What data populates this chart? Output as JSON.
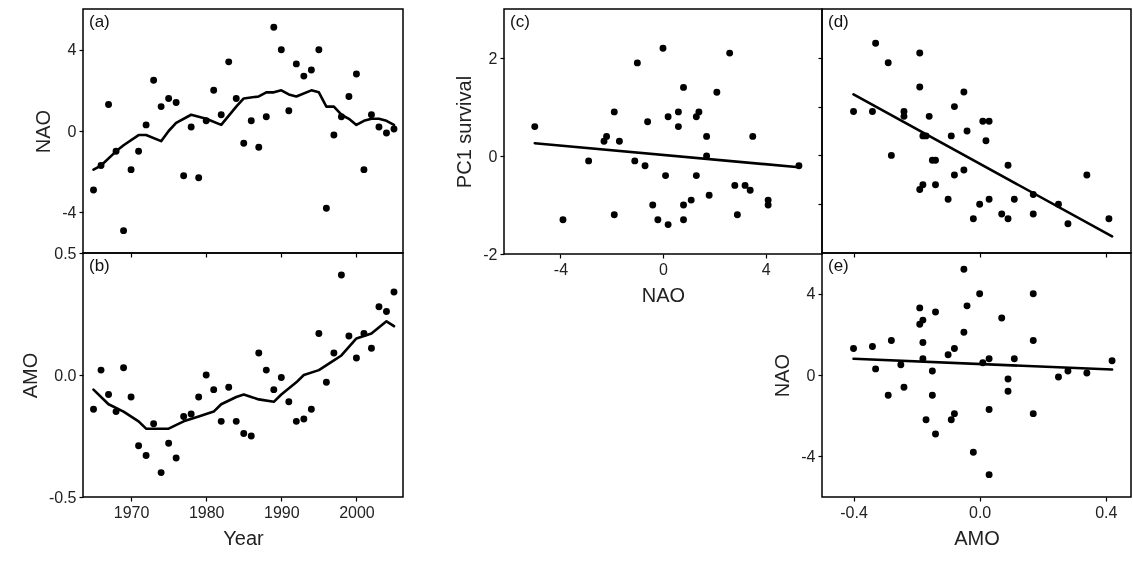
{
  "chart_data": [
    {
      "type": "scatter",
      "ylabel": "NAO",
      "annotations": [
        "(a)"
      ],
      "tick_labels": "y",
      "xlim": [
        1963.6,
        2006.2
      ],
      "xticks": [
        1970,
        1980,
        1990,
        2000
      ],
      "ylim": [
        -6,
        6
      ],
      "yticks": [
        -4,
        0,
        4
      ],
      "series": [
        {
          "type": "scatter",
          "marker": "circle",
          "color": "#000000",
          "x": [
            1965,
            1966,
            1967,
            1968,
            1969,
            1970,
            1971,
            1972,
            1973,
            1974,
            1975,
            1976,
            1977,
            1978,
            1979,
            1980,
            1981,
            1982,
            1983,
            1984,
            1985,
            1986,
            1987,
            1988,
            1989,
            1990,
            1991,
            1992,
            1993,
            1994,
            1995,
            1996,
            1997,
            1998,
            1999,
            2000,
            2001,
            2002,
            2003,
            2004,
            2005
          ],
          "values": [
            -2.9,
            -1.7,
            1.3,
            -1.0,
            -4.9,
            -1.9,
            -1.0,
            0.3,
            2.5,
            1.2,
            1.6,
            1.4,
            -2.2,
            0.2,
            -2.3,
            0.5,
            2.0,
            0.8,
            3.4,
            1.6,
            -0.6,
            0.5,
            -0.8,
            0.7,
            5.1,
            4.0,
            1.0,
            3.3,
            2.7,
            3.0,
            4.0,
            -3.8,
            -0.2,
            0.7,
            1.7,
            2.8,
            -1.9,
            0.8,
            0.2,
            -0.1,
            0.1
          ]
        },
        {
          "type": "line",
          "color": "#000000",
          "x": [
            1965,
            1966,
            1968,
            1969,
            1971,
            1972,
            1974,
            1975,
            1976,
            1978,
            1979,
            1980,
            1982,
            1984,
            1985,
            1987,
            1988,
            1989,
            1990,
            1991,
            1992,
            1994,
            1995,
            1996,
            1997,
            1998,
            1999,
            2000,
            2001,
            2002,
            2003,
            2004,
            2005
          ],
          "values": [
            -1.9,
            -1.7,
            -1.0,
            -0.7,
            -0.2,
            -0.2,
            -0.5,
            0.0,
            0.4,
            0.8,
            0.7,
            0.6,
            0.3,
            1.2,
            1.6,
            1.7,
            1.9,
            1.9,
            2.0,
            1.8,
            1.7,
            2.0,
            1.9,
            1.2,
            1.2,
            0.8,
            0.6,
            0.3,
            0.5,
            0.6,
            0.6,
            0.5,
            0.3
          ]
        }
      ]
    },
    {
      "type": "scatter",
      "xlabel": "Year",
      "ylabel": "AMO",
      "annotations": [
        "(b)"
      ],
      "xlim": [
        1963.6,
        2006.2
      ],
      "xticks": [
        1970,
        1980,
        1990,
        2000
      ],
      "ylim": [
        -0.5,
        0.5
      ],
      "yticks": [
        -0.5,
        {
          "value": 0,
          "label": "0.0"
        },
        0.5
      ],
      "series": [
        {
          "type": "scatter",
          "marker": "circle",
          "color": "#000000",
          "x": [
            1965,
            1966,
            1967,
            1968,
            1969,
            1970,
            1971,
            1972,
            1973,
            1974,
            1975,
            1976,
            1977,
            1978,
            1979,
            1980,
            1981,
            1982,
            1983,
            1984,
            1985,
            1986,
            1987,
            1988,
            1989,
            1990,
            1991,
            1992,
            1993,
            1994,
            1995,
            1996,
            1997,
            1998,
            1999,
            2000,
            2001,
            2002,
            2003,
            2004,
            2005
          ],
          "values": [
            -0.14,
            0.02,
            -0.08,
            -0.15,
            0.03,
            -0.09,
            -0.29,
            -0.33,
            -0.2,
            -0.4,
            -0.28,
            -0.34,
            -0.17,
            -0.16,
            -0.09,
            0.0,
            -0.06,
            -0.19,
            -0.05,
            -0.19,
            -0.24,
            -0.25,
            0.09,
            0.02,
            -0.06,
            -0.01,
            -0.11,
            -0.19,
            -0.18,
            -0.14,
            0.17,
            -0.03,
            0.09,
            0.41,
            0.16,
            0.07,
            0.17,
            0.11,
            0.28,
            0.26,
            0.34
          ]
        },
        {
          "type": "line",
          "color": "#000000",
          "x": [
            1965,
            1967,
            1969,
            1971,
            1972,
            1973,
            1975,
            1977,
            1979,
            1981,
            1982,
            1984,
            1985,
            1986,
            1987,
            1989,
            1990,
            1992,
            1993,
            1995,
            1997,
            1998,
            2000,
            2002,
            2004,
            2005
          ],
          "values": [
            -0.06,
            -0.12,
            -0.15,
            -0.19,
            -0.22,
            -0.22,
            -0.22,
            -0.19,
            -0.17,
            -0.15,
            -0.12,
            -0.09,
            -0.08,
            -0.09,
            -0.1,
            -0.11,
            -0.08,
            -0.03,
            0.0,
            0.02,
            0.06,
            0.08,
            0.15,
            0.17,
            0.22,
            0.2
          ]
        }
      ]
    },
    {
      "type": "scatter",
      "xlabel": "NAO",
      "ylabel": "PC1 survival",
      "annotations": [
        "(c)"
      ],
      "xlim": [
        -6.2,
        6.2
      ],
      "xticks": [
        -4,
        0,
        4
      ],
      "ylim": [
        -2,
        3
      ],
      "yticks": [
        -2,
        0,
        2
      ],
      "series": [
        {
          "type": "scatter",
          "marker": "circle",
          "color": "#000000",
          "x": [
            -5.0,
            -3.9,
            -2.9,
            -2.3,
            -2.2,
            -1.9,
            -1.9,
            -1.7,
            -1.1,
            -1.0,
            -0.7,
            -0.6,
            -0.4,
            -0.2,
            0.0,
            0.1,
            0.2,
            0.2,
            0.6,
            0.6,
            0.8,
            0.8,
            0.8,
            1.1,
            1.3,
            1.3,
            1.4,
            1.7,
            1.7,
            1.8,
            2.1,
            2.6,
            2.8,
            2.9,
            3.2,
            3.4,
            3.5,
            4.1,
            4.1,
            5.3
          ],
          "values": [
            0.6,
            -1.3,
            -0.1,
            0.3,
            0.4,
            0.9,
            -1.2,
            0.3,
            -0.1,
            1.9,
            -0.2,
            0.7,
            -1.0,
            -1.3,
            2.2,
            -0.4,
            0.8,
            -1.4,
            0.9,
            0.6,
            -1.0,
            -1.3,
            1.4,
            -0.9,
            0.8,
            -0.4,
            0.9,
            0.4,
            0.0,
            -0.8,
            1.3,
            2.1,
            -0.6,
            -1.2,
            -0.6,
            -0.7,
            0.4,
            -0.9,
            -1.0,
            -0.2
          ]
        },
        {
          "type": "line",
          "color": "#000000",
          "x": [
            -5.0,
            5.3
          ],
          "values": [
            0.26,
            -0.23
          ]
        }
      ]
    },
    {
      "type": "scatter",
      "annotations": [
        "(d)"
      ],
      "tick_labels": false,
      "xlim": [
        -0.5,
        0.48
      ],
      "xticks": [
        -0.4,
        0,
        0.4
      ],
      "ylim": [
        -2,
        3
      ],
      "yticks": [
        -1,
        0,
        1,
        2
      ],
      "series": [
        {
          "type": "scatter",
          "marker": "circle",
          "color": "#000000",
          "x": [
            -0.4,
            -0.34,
            -0.33,
            -0.29,
            -0.28,
            -0.24,
            -0.24,
            -0.19,
            -0.19,
            -0.19,
            -0.18,
            -0.18,
            -0.17,
            -0.16,
            -0.15,
            -0.14,
            -0.14,
            -0.1,
            -0.09,
            -0.08,
            -0.08,
            -0.05,
            -0.05,
            -0.04,
            -0.02,
            0.0,
            0.01,
            0.03,
            0.03,
            0.02,
            0.07,
            0.09,
            0.09,
            0.11,
            0.17,
            0.17,
            0.25,
            0.28,
            0.34,
            0.41
          ],
          "values": [
            0.9,
            0.9,
            2.3,
            1.9,
            0.0,
            0.9,
            0.8,
            2.1,
            1.4,
            -0.7,
            -0.6,
            0.4,
            0.4,
            0.8,
            -0.1,
            -0.1,
            -0.6,
            -0.9,
            0.4,
            1.0,
            -0.4,
            1.3,
            -0.3,
            0.5,
            -1.3,
            -1.0,
            0.7,
            -0.9,
            0.7,
            0.3,
            -1.2,
            -1.3,
            -0.2,
            -0.9,
            -0.8,
            -1.2,
            -1.0,
            -1.4,
            -0.4,
            -1.3
          ]
        },
        {
          "type": "line",
          "color": "#000000",
          "x": [
            -0.4,
            0.42
          ],
          "values": [
            1.25,
            -1.66
          ]
        }
      ]
    },
    {
      "type": "scatter",
      "xlabel": "AMO",
      "ylabel": "NAO",
      "annotations": [
        "(e)"
      ],
      "xlim": [
        -0.5,
        0.48
      ],
      "xticks": [
        -0.4,
        {
          "value": 0,
          "label": "0.0"
        },
        0.4
      ],
      "ylim": [
        -6,
        6
      ],
      "yticks": [
        -4,
        0,
        4
      ],
      "series": [
        {
          "type": "scatter",
          "marker": "circle",
          "color": "#000000",
          "x": [
            -0.4,
            -0.34,
            -0.33,
            -0.29,
            -0.28,
            -0.25,
            -0.24,
            -0.19,
            -0.19,
            -0.18,
            -0.18,
            -0.18,
            -0.17,
            -0.15,
            -0.15,
            -0.14,
            -0.14,
            -0.1,
            -0.09,
            -0.08,
            -0.08,
            -0.05,
            -0.05,
            -0.04,
            -0.02,
            0.0,
            0.01,
            0.03,
            0.03,
            0.03,
            0.07,
            0.09,
            0.09,
            0.11,
            0.17,
            0.17,
            0.17,
            0.25,
            0.28,
            0.34,
            0.42
          ],
          "values": [
            1.3,
            1.4,
            0.3,
            -1.0,
            1.7,
            0.5,
            -0.6,
            2.5,
            3.3,
            0.8,
            2.7,
            1.6,
            -2.2,
            0.2,
            -1.0,
            3.1,
            -2.9,
            1.0,
            -2.2,
            -1.9,
            1.3,
            5.2,
            2.1,
            3.4,
            -3.8,
            4.0,
            0.6,
            0.8,
            -1.7,
            -4.9,
            2.8,
            -0.2,
            -0.8,
            0.8,
            -1.9,
            1.7,
            4.0,
            -0.1,
            0.2,
            0.1,
            0.7
          ]
        },
        {
          "type": "line",
          "color": "#000000",
          "x": [
            -0.4,
            0.42
          ],
          "values": [
            0.8,
            0.27
          ]
        }
      ]
    }
  ]
}
